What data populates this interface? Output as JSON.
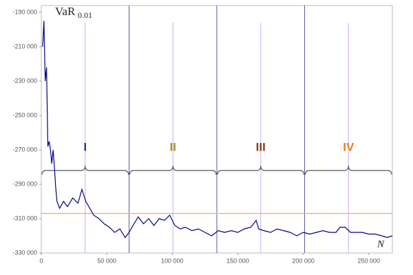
{
  "chart_data": {
    "type": "line",
    "y_label": "VaR",
    "y_label_sub": "0.01",
    "x_label": "N",
    "xlim": [
      0,
      268000
    ],
    "ylim": [
      -330000,
      -186000
    ],
    "xticks": [
      0,
      {
        "value": 50000,
        "label": "50 000"
      },
      {
        "value": 100000,
        "label": "100 000"
      },
      {
        "value": 150000,
        "label": "150 000"
      },
      {
        "value": 200000,
        "label": "200 000"
      },
      {
        "value": 250000,
        "label": "250 000"
      }
    ],
    "yticks": [
      {
        "value": -190000,
        "label": "-190 000"
      },
      {
        "value": -210000,
        "label": "-210 000"
      },
      {
        "value": -230000,
        "label": "-230 000"
      },
      {
        "value": -250000,
        "label": "-250 000"
      },
      {
        "value": -270000,
        "label": "-270 000"
      },
      {
        "value": -290000,
        "label": "-290 000"
      },
      {
        "value": -310000,
        "label": "-310 000"
      },
      {
        "value": -330000,
        "label": "-330 000"
      }
    ],
    "x": [
      1000,
      2000,
      3000,
      4000,
      5000,
      6000,
      7000,
      8000,
      9000,
      10000,
      11000,
      12000,
      14000,
      17000,
      20000,
      24000,
      28000,
      31000,
      34000,
      37000,
      40000,
      44000,
      48000,
      52000,
      56000,
      60000,
      64000,
      67000,
      70000,
      74000,
      78000,
      82000,
      86000,
      90000,
      94000,
      98000,
      102000,
      106000,
      110000,
      115000,
      120000,
      125000,
      130000,
      135000,
      140000,
      145000,
      150000,
      155000,
      160000,
      164000,
      166000,
      170000,
      175000,
      180000,
      185000,
      190000,
      195000,
      200000,
      205000,
      210000,
      215000,
      220000,
      225000,
      228000,
      232000,
      236000,
      240000,
      245000,
      250000,
      255000,
      260000,
      264000,
      268000
    ],
    "series": [
      {
        "color": "#000080",
        "values": [
          -210000,
          -195000,
          -230000,
          -222000,
          -268000,
          -265000,
          -270000,
          -278000,
          -270000,
          -280000,
          -292000,
          -300000,
          -304000,
          -300000,
          -303000,
          -298000,
          -301000,
          -293000,
          -300000,
          -304000,
          -308000,
          -310000,
          -313000,
          -315000,
          -318000,
          -316000,
          -321000,
          -318000,
          -314000,
          -309000,
          -313000,
          -310000,
          -314000,
          -310000,
          -311000,
          -308000,
          -314000,
          -316000,
          -315000,
          -317000,
          -316000,
          -318000,
          -320000,
          -317000,
          -318000,
          -317000,
          -318000,
          -316000,
          -315000,
          -311000,
          -316000,
          -317000,
          -318000,
          -316000,
          -317000,
          -318000,
          -320000,
          -318000,
          -319000,
          -318000,
          -317000,
          -318000,
          -318000,
          -315000,
          -315000,
          -318000,
          -318000,
          -318000,
          -319000,
          -319000,
          -320000,
          -321000,
          -320000
        ]
      }
    ],
    "reference_line": {
      "value": -307000,
      "color": "#f4b183"
    },
    "regions": [
      {
        "label": "I",
        "color": "#1f3a93",
        "start": 0,
        "end": 67000
      },
      {
        "label": "II",
        "color": "#9a9a1a",
        "start": 67000,
        "end": 134000
      },
      {
        "label": "III",
        "color": "#8b3a1a",
        "start": 134000,
        "end": 201000
      },
      {
        "label": "IV",
        "color": "#f07c20",
        "start": 201000,
        "end": 268000
      }
    ]
  }
}
